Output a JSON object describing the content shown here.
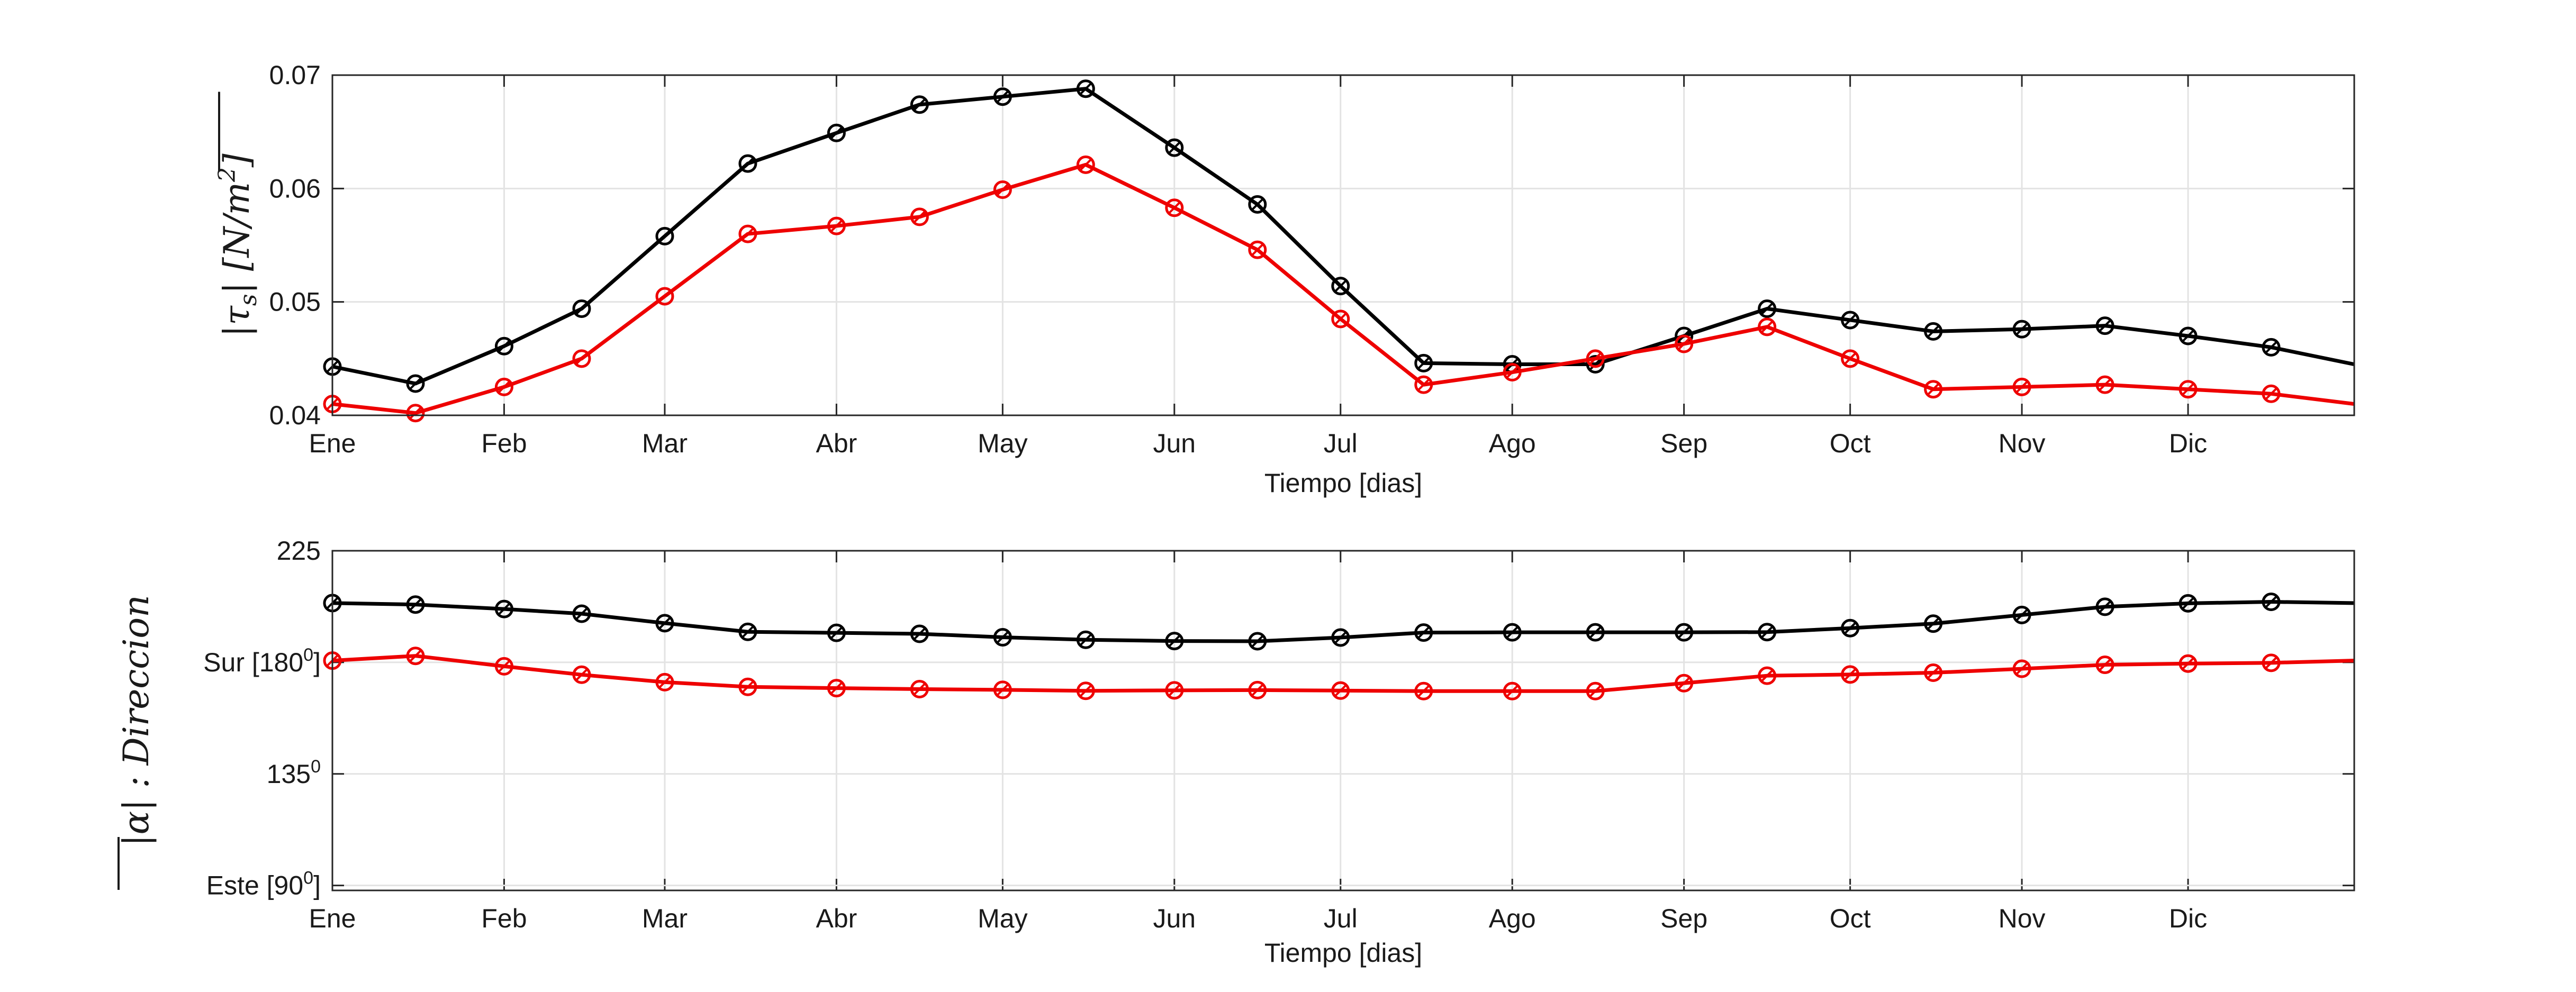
{
  "chart_data": [
    {
      "type": "line",
      "xlabel": "Tiempo [dias]",
      "ylabel_parts": [
        "|τ",
        "s",
        "| [N/m",
        "2",
        "]"
      ],
      "ylim": [
        0.04,
        0.07
      ],
      "xlim": [
        0,
        365
      ],
      "grid": true,
      "yticks": [
        {
          "value": 0.04,
          "label": "0.04"
        },
        {
          "value": 0.05,
          "label": "0.05"
        },
        {
          "value": 0.06,
          "label": "0.06"
        },
        {
          "value": 0.07,
          "label": "0.07"
        }
      ],
      "xticks": [
        {
          "value": 0,
          "label": "Ene"
        },
        {
          "value": 31,
          "label": "Feb"
        },
        {
          "value": 60,
          "label": "Mar"
        },
        {
          "value": 91,
          "label": "Abr"
        },
        {
          "value": 121,
          "label": "May"
        },
        {
          "value": 152,
          "label": "Jun"
        },
        {
          "value": 182,
          "label": "Jul"
        },
        {
          "value": 213,
          "label": "Ago"
        },
        {
          "value": 244,
          "label": "Sep"
        },
        {
          "value": 274,
          "label": "Oct"
        },
        {
          "value": 305,
          "label": "Nov"
        },
        {
          "value": 335,
          "label": "Dic"
        }
      ],
      "x": [
        0,
        15,
        31,
        45,
        60,
        75,
        91,
        106,
        121,
        136,
        152,
        167,
        182,
        197,
        213,
        228,
        244,
        259,
        274,
        289,
        305,
        320,
        335,
        350,
        365
      ],
      "series": [
        {
          "color": "#000000",
          "marker": "circle",
          "markers_from": 0,
          "markers_to": 23,
          "values": [
            0.0443,
            0.0428,
            0.0461,
            0.0494,
            0.0558,
            0.0622,
            0.0649,
            0.0674,
            0.0681,
            0.0688,
            0.0636,
            0.0586,
            0.0514,
            0.0446,
            0.0445,
            0.0445,
            0.047,
            0.0494,
            0.0484,
            0.0474,
            0.0476,
            0.0479,
            0.047,
            0.046,
            0.0445
          ]
        },
        {
          "color": "#ee0000",
          "marker": "circle",
          "markers_from": 0,
          "markers_to": 23,
          "values": [
            0.041,
            0.0402,
            0.0425,
            0.045,
            0.0505,
            0.056,
            0.0567,
            0.0575,
            0.0599,
            0.0621,
            0.0583,
            0.0546,
            0.0485,
            0.0427,
            0.0438,
            0.045,
            0.0463,
            0.0478,
            0.045,
            0.0423,
            0.0425,
            0.0427,
            0.0423,
            0.0419,
            0.041
          ]
        }
      ]
    },
    {
      "type": "line",
      "xlabel": "Tiempo [dias]",
      "ylabel_parts": [
        "|α|",
        " : Direccion"
      ],
      "ylim": [
        88,
        225
      ],
      "xlim": [
        0,
        365
      ],
      "grid": true,
      "yticks": [
        {
          "value": 90,
          "label": "Este [90",
          "sup": "0",
          "suffix": "]"
        },
        {
          "value": 135,
          "label": "135",
          "sup": "0",
          "suffix": ""
        },
        {
          "value": 180,
          "label": "Sur [180",
          "sup": "0",
          "suffix": "]"
        },
        {
          "value": 225,
          "label": "225",
          "sup": "",
          "suffix": ""
        }
      ],
      "xticks": [
        {
          "value": 0,
          "label": "Ene"
        },
        {
          "value": 31,
          "label": "Feb"
        },
        {
          "value": 60,
          "label": "Mar"
        },
        {
          "value": 91,
          "label": "Abr"
        },
        {
          "value": 121,
          "label": "May"
        },
        {
          "value": 152,
          "label": "Jun"
        },
        {
          "value": 182,
          "label": "Jul"
        },
        {
          "value": 213,
          "label": "Ago"
        },
        {
          "value": 244,
          "label": "Sep"
        },
        {
          "value": 274,
          "label": "Oct"
        },
        {
          "value": 305,
          "label": "Nov"
        },
        {
          "value": 335,
          "label": "Dic"
        }
      ],
      "x": [
        0,
        15,
        31,
        45,
        60,
        75,
        91,
        106,
        121,
        136,
        152,
        167,
        182,
        197,
        213,
        228,
        244,
        259,
        274,
        289,
        305,
        320,
        335,
        350,
        365
      ],
      "series": [
        {
          "color": "#000000",
          "marker": "circle",
          "markers_from": 0,
          "markers_to": 23,
          "values": [
            203.9,
            203.3,
            201.5,
            199.6,
            195.8,
            192.3,
            191.9,
            191.5,
            190.1,
            189.1,
            188.6,
            188.5,
            190.0,
            192.0,
            192.1,
            192.1,
            192.1,
            192.2,
            193.8,
            195.6,
            199.1,
            202.4,
            203.8,
            204.4,
            203.9
          ]
        },
        {
          "color": "#ee0000",
          "marker": "circle",
          "markers_from": 0,
          "markers_to": 23,
          "values": [
            180.7,
            182.6,
            178.4,
            175.0,
            172.0,
            170.1,
            169.6,
            169.2,
            168.9,
            168.5,
            168.7,
            168.8,
            168.6,
            168.4,
            168.4,
            168.4,
            171.6,
            174.6,
            175.1,
            175.8,
            177.4,
            179.0,
            179.5,
            179.8,
            180.7
          ]
        }
      ]
    }
  ]
}
